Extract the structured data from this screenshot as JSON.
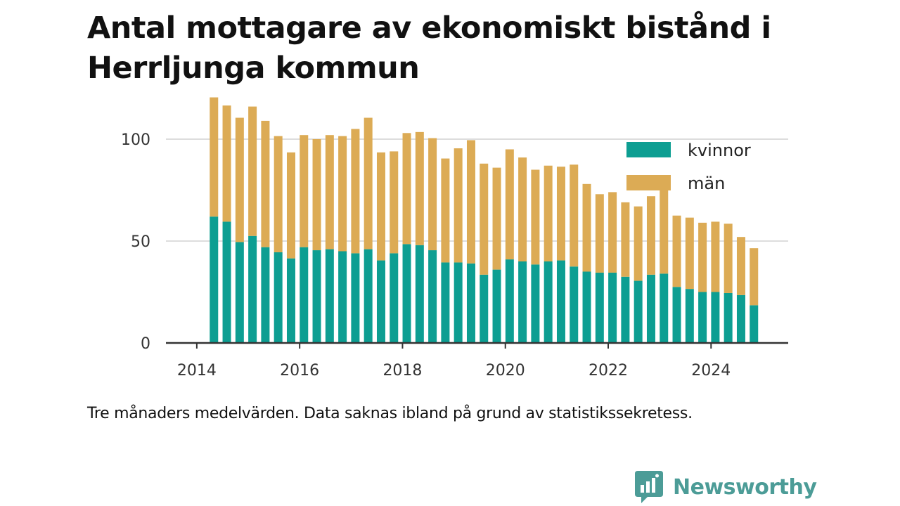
{
  "title": "Antal mottagare av ekonomiskt bistånd i Herrljunga kommun",
  "footnote": "Tre månaders medelvärden. Data saknas ibland på grund av statistikssekretess.",
  "brand": {
    "name": "Newsworthy",
    "icon": "newsworthy-logo-icon",
    "color": "#4c9c97"
  },
  "colors": {
    "kvinnor": "#0d9e92",
    "man": "#dcab55",
    "grid": "#dddddd",
    "axis": "#333333"
  },
  "chart_data": {
    "type": "bar",
    "stacked": true,
    "title": "Antal mottagare av ekonomiskt bistånd i Herrljunga kommun",
    "xlabel": "",
    "ylabel": "",
    "xlim": [
      2013.4,
      2025.5
    ],
    "ylim": [
      0,
      120
    ],
    "x_ticks": [
      2014,
      2016,
      2018,
      2020,
      2022,
      2024
    ],
    "y_ticks": [
      0,
      50,
      100
    ],
    "grid": "horizontal",
    "legend_position": "top-right",
    "x": [
      "2014-05",
      "2014-08",
      "2014-11",
      "2015-02",
      "2015-05",
      "2015-08",
      "2015-11",
      "2016-02",
      "2016-05",
      "2016-08",
      "2016-11",
      "2017-02",
      "2017-05",
      "2017-08",
      "2017-11",
      "2018-02",
      "2018-05",
      "2018-08",
      "2018-11",
      "2019-02",
      "2019-05",
      "2019-08",
      "2019-11",
      "2020-02",
      "2020-05",
      "2020-08",
      "2020-11",
      "2021-02",
      "2021-05",
      "2021-08",
      "2021-11",
      "2022-02",
      "2022-05",
      "2022-08",
      "2022-11",
      "2023-02",
      "2023-05",
      "2023-08",
      "2023-11",
      "2024-02",
      "2024-05",
      "2024-08",
      "2024-11"
    ],
    "series": [
      {
        "name": "kvinnor",
        "color": "#0d9e92",
        "values": [
          62,
          59.5,
          49.5,
          52.5,
          47,
          44.5,
          41.5,
          47,
          45.5,
          46,
          45,
          44,
          46,
          40.5,
          44,
          48.5,
          48,
          45.5,
          39.5,
          39.5,
          39,
          33.5,
          36,
          41,
          40,
          38.5,
          40,
          40.5,
          37.5,
          35,
          34.5,
          34.5,
          32.5,
          30.5,
          33.5,
          34,
          27.5,
          26.5,
          25,
          25,
          24.5,
          23.5,
          18.5
        ]
      },
      {
        "name": "män",
        "color": "#dcab55",
        "values": [
          58.5,
          57,
          61,
          63.5,
          62,
          57,
          52,
          55,
          54.5,
          56,
          56.5,
          61,
          64.5,
          53,
          50,
          54.5,
          55.5,
          55,
          51,
          56,
          60.5,
          54.5,
          50,
          54,
          51,
          46.5,
          47,
          46,
          50,
          43,
          38.5,
          39.5,
          36.5,
          36.5,
          38.5,
          41,
          35,
          35,
          34,
          34.5,
          34,
          28.5,
          28
        ]
      }
    ]
  }
}
